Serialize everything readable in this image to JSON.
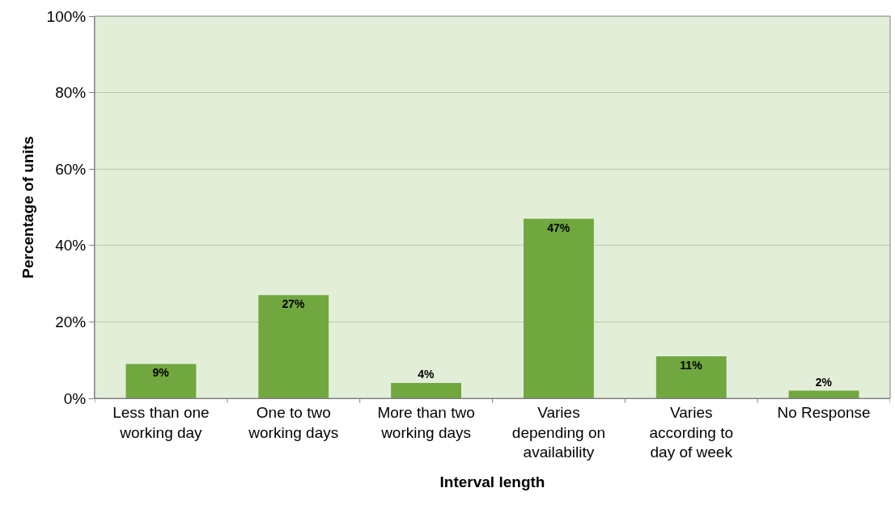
{
  "chart_data": {
    "type": "bar",
    "xlabel": "Interval length",
    "ylabel": "Percentage of units",
    "categories": [
      "Less than one\nworking day",
      "One to two\nworking days",
      "More than two\nworking days",
      "Varies\ndepending on\navailability",
      "Varies\naccording to\nday of week",
      "No Response"
    ],
    "values": [
      9,
      27,
      4,
      47,
      11,
      2
    ],
    "value_labels": [
      "9%",
      "27%",
      "4%",
      "47%",
      "11%",
      "2%"
    ],
    "color": "#70a83f",
    "ylim": [
      0,
      100
    ],
    "yticks": [
      {
        "value": 0,
        "label": "0%"
      },
      {
        "value": 20,
        "label": "20%"
      },
      {
        "value": 40,
        "label": "40%"
      },
      {
        "value": 60,
        "label": "60%"
      },
      {
        "value": 80,
        "label": "80%"
      },
      {
        "value": 100,
        "label": "100%"
      }
    ],
    "grid": "y"
  }
}
